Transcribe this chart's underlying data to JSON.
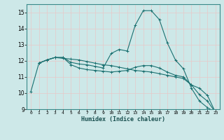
{
  "xlabel": "Humidex (Indice chaleur)",
  "ylabel": "",
  "xlim": [
    -0.5,
    23.5
  ],
  "ylim": [
    9,
    15.5
  ],
  "yticks": [
    9,
    10,
    11,
    12,
    13,
    14,
    15
  ],
  "xticks": [
    0,
    1,
    2,
    3,
    4,
    5,
    6,
    7,
    8,
    9,
    10,
    11,
    12,
    13,
    14,
    15,
    16,
    17,
    18,
    19,
    20,
    21,
    22,
    23
  ],
  "background_color": "#cde8e8",
  "grid_color": "#b0d0d0",
  "line_color": "#1a7070",
  "lines": [
    {
      "x": [
        0,
        1,
        2,
        3,
        4,
        5,
        6,
        7,
        8,
        9,
        10,
        11,
        12,
        13,
        14,
        15,
        16,
        17,
        18,
        19,
        20,
        21,
        22,
        23
      ],
      "y": [
        10.1,
        11.85,
        12.05,
        12.2,
        12.15,
        12.1,
        12.05,
        11.95,
        11.85,
        11.75,
        11.7,
        11.6,
        11.5,
        11.4,
        11.35,
        11.3,
        11.2,
        11.1,
        11.0,
        10.9,
        10.5,
        10.3,
        9.85,
        8.8
      ]
    },
    {
      "x": [
        1,
        2,
        3,
        4,
        5,
        6,
        7,
        8,
        9,
        10,
        11,
        12,
        13,
        14,
        15,
        16,
        17,
        18,
        19,
        20,
        21,
        22,
        23
      ],
      "y": [
        11.85,
        12.05,
        12.2,
        12.2,
        11.9,
        11.8,
        11.75,
        11.65,
        11.55,
        12.45,
        12.7,
        12.6,
        14.2,
        15.1,
        15.1,
        14.55,
        13.1,
        12.05,
        11.5,
        10.3,
        9.5,
        9.1,
        8.8
      ]
    },
    {
      "x": [
        1,
        2,
        3,
        4,
        5,
        6,
        7,
        8,
        9,
        10,
        11,
        12,
        13,
        14,
        15,
        16,
        17,
        18,
        19,
        20,
        21,
        22,
        23
      ],
      "y": [
        11.85,
        12.05,
        12.2,
        12.2,
        11.75,
        11.55,
        11.45,
        11.4,
        11.35,
        11.3,
        11.35,
        11.4,
        11.6,
        11.7,
        11.7,
        11.55,
        11.3,
        11.1,
        11.0,
        10.5,
        9.9,
        9.5,
        8.8
      ]
    }
  ]
}
